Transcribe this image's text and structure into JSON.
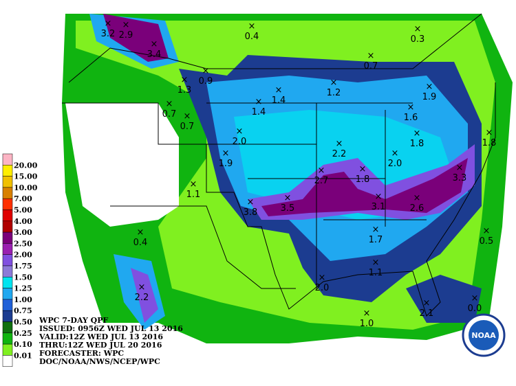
{
  "header": {
    "lines": [
      "WPC 7-DAY QPF",
      "ISSUED: 0956Z WED JUL 13 2016",
      "VALID:12Z WED JUL 13 2016",
      "THRU:12Z WED JUL 20 2016",
      "FORECASTER: WPC",
      "DOC/NOAA/NWS/NCEP/WPC"
    ]
  },
  "legend": {
    "labels": [
      "20.00",
      "15.00",
      "10.00",
      "7.00",
      "5.00",
      "4.00",
      "3.00",
      "2.50",
      "2.00",
      "1.75",
      "1.50",
      "1.25",
      "1.00",
      "0.75",
      "0.50",
      "0.25",
      "0.10",
      "0.01"
    ],
    "colors": [
      "#fcb4c4",
      "#ffee00",
      "#f0c000",
      "#d88000",
      "#ff3000",
      "#e00000",
      "#b00000",
      "#7a007a",
      "#9a20b0",
      "#8050e0",
      "#8c7ad8",
      "#00e4f0",
      "#20a8f0",
      "#2060d8",
      "#1c3c90",
      "#107010",
      "#10b410",
      "#80f020",
      "#ffffff"
    ]
  },
  "points": [
    "3.2",
    "2.9",
    "3.4",
    "0.4",
    "0.3",
    "0.7",
    "1.3",
    "0.9",
    "1.4",
    "1.2",
    "1.9",
    "0.7",
    "0.7",
    "1.4",
    "1.6",
    "2.0",
    "1.9",
    "2.2",
    "1.8",
    "1.8",
    "2.0",
    "2.7",
    "1.8",
    "3.3",
    "1.1",
    "3.8",
    "3.5",
    "3.1",
    "2.6",
    "0.4",
    "1.7",
    "0.5",
    "1.1",
    "2.0",
    "2.2",
    "2.1",
    "0.0",
    "1.0"
  ],
  "logo": "NOAA"
}
